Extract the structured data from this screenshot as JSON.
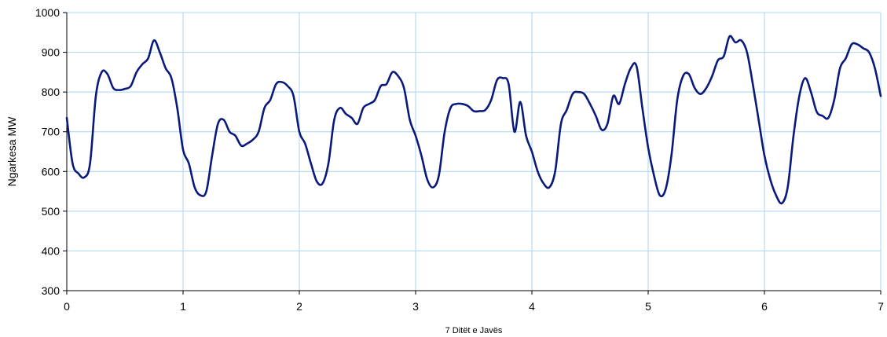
{
  "chart_data": {
    "type": "line",
    "title": "",
    "xlabel": "7 Ditët e Javës",
    "ylabel": "Ngarkesa MW",
    "xlim": [
      0,
      7
    ],
    "ylim": [
      300,
      1000
    ],
    "x_ticks": [
      0,
      1,
      2,
      3,
      4,
      5,
      6,
      7
    ],
    "y_ticks": [
      300,
      400,
      500,
      600,
      700,
      800,
      900,
      1000
    ],
    "grid": true,
    "legend": "none",
    "colors": {
      "line": "#0a1a7a",
      "grid": "#a9d4f2",
      "axis": "#000000"
    },
    "series": [
      {
        "x": [
          0.0,
          0.05,
          0.1,
          0.15,
          0.2,
          0.25,
          0.3,
          0.35,
          0.4,
          0.45,
          0.5,
          0.55,
          0.6,
          0.65,
          0.7,
          0.75,
          0.8,
          0.85,
          0.9,
          0.95,
          1.0,
          1.05,
          1.1,
          1.15,
          1.2,
          1.25,
          1.3,
          1.35,
          1.4,
          1.45,
          1.5,
          1.55,
          1.6,
          1.65,
          1.7,
          1.75,
          1.8,
          1.85,
          1.9,
          1.95,
          2.0,
          2.05,
          2.1,
          2.15,
          2.2,
          2.25,
          2.3,
          2.35,
          2.4,
          2.45,
          2.5,
          2.55,
          2.6,
          2.65,
          2.7,
          2.75,
          2.8,
          2.85,
          2.9,
          2.95,
          3.0,
          3.05,
          3.1,
          3.15,
          3.2,
          3.25,
          3.3,
          3.35,
          3.4,
          3.45,
          3.5,
          3.55,
          3.6,
          3.65,
          3.7,
          3.75,
          3.8,
          3.85,
          3.9,
          3.95,
          4.0,
          4.05,
          4.1,
          4.15,
          4.2,
          4.25,
          4.3,
          4.35,
          4.4,
          4.45,
          4.5,
          4.55,
          4.6,
          4.65,
          4.7,
          4.75,
          4.8,
          4.85,
          4.9,
          4.95,
          5.0,
          5.05,
          5.1,
          5.15,
          5.2,
          5.25,
          5.3,
          5.35,
          5.4,
          5.45,
          5.5,
          5.55,
          5.6,
          5.65,
          5.7,
          5.75,
          5.8,
          5.85,
          5.9,
          5.95,
          6.0,
          6.05,
          6.1,
          6.15,
          6.2,
          6.25,
          6.3,
          6.35,
          6.4,
          6.45,
          6.5,
          6.55,
          6.6,
          6.65,
          6.7,
          6.75,
          6.8,
          6.85,
          6.9,
          6.95,
          7.0
        ],
        "values": [
          735,
          620,
          595,
          585,
          620,
          790,
          850,
          845,
          810,
          805,
          808,
          815,
          850,
          870,
          885,
          930,
          900,
          860,
          835,
          760,
          655,
          620,
          560,
          540,
          550,
          640,
          720,
          730,
          700,
          690,
          665,
          670,
          680,
          700,
          760,
          780,
          820,
          825,
          815,
          790,
          700,
          670,
          620,
          575,
          570,
          620,
          730,
          760,
          745,
          735,
          720,
          760,
          770,
          780,
          815,
          820,
          850,
          840,
          810,
          730,
          690,
          640,
          580,
          560,
          590,
          700,
          760,
          770,
          770,
          765,
          752,
          752,
          755,
          780,
          830,
          835,
          820,
          700,
          775,
          690,
          650,
          600,
          570,
          560,
          600,
          720,
          755,
          795,
          800,
          795,
          770,
          740,
          705,
          720,
          790,
          770,
          820,
          860,
          865,
          760,
          660,
          590,
          540,
          555,
          640,
          780,
          840,
          845,
          810,
          795,
          810,
          840,
          880,
          890,
          940,
          925,
          930,
          900,
          820,
          730,
          640,
          580,
          540,
          520,
          560,
          690,
          790,
          835,
          800,
          750,
          740,
          735,
          780,
          860,
          885,
          920,
          920,
          910,
          900,
          860,
          790
        ]
      }
    ]
  }
}
